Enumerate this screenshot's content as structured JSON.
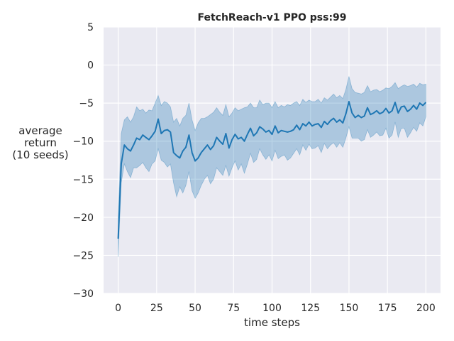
{
  "chart_data": {
    "type": "line",
    "title": "FetchReach-v1 PPO pss:99",
    "xlabel": "time steps",
    "ylabel_lines": [
      "average",
      "return",
      "(10 seeds)"
    ],
    "xlim": [
      -9.5,
      209.5
    ],
    "ylim": [
      -30,
      5
    ],
    "xticks": [
      0,
      25,
      50,
      75,
      100,
      125,
      150,
      175,
      200
    ],
    "yticks": [
      5,
      0,
      -5,
      -10,
      -15,
      -20,
      -25,
      -30
    ],
    "grid": true,
    "background_color": "#eaeaf2",
    "line_color": "#1f77b4",
    "band_color": "#1f77b4",
    "series": [
      {
        "x": [
          0,
          2,
          4,
          6,
          8,
          10,
          12,
          14,
          16,
          18,
          20,
          22,
          24,
          26,
          28,
          30,
          32,
          34,
          36,
          38,
          40,
          42,
          44,
          46,
          48,
          50,
          52,
          54,
          56,
          58,
          60,
          62,
          64,
          66,
          68,
          70,
          72,
          74,
          76,
          78,
          80,
          82,
          84,
          86,
          88,
          90,
          92,
          94,
          96,
          98,
          100,
          102,
          104,
          106,
          108,
          110,
          112,
          114,
          116,
          118,
          120,
          122,
          124,
          126,
          128,
          130,
          132,
          134,
          136,
          138,
          140,
          142,
          144,
          146,
          148,
          150,
          152,
          154,
          156,
          158,
          160,
          162,
          164,
          166,
          168,
          170,
          172,
          174,
          176,
          178,
          180,
          182,
          184,
          186,
          188,
          190,
          192,
          194,
          196,
          198,
          200
        ],
        "mean": [
          -22.8,
          -13.0,
          -10.5,
          -11.0,
          -11.3,
          -10.5,
          -9.6,
          -9.8,
          -9.2,
          -9.5,
          -9.8,
          -9.3,
          -8.7,
          -7.1,
          -9.0,
          -8.6,
          -8.5,
          -8.8,
          -11.5,
          -11.9,
          -12.2,
          -11.3,
          -10.8,
          -9.2,
          -11.5,
          -12.6,
          -12.2,
          -11.5,
          -11.0,
          -10.5,
          -11.1,
          -10.6,
          -9.5,
          -10.0,
          -10.4,
          -9.0,
          -10.9,
          -9.8,
          -9.1,
          -9.7,
          -9.5,
          -10.0,
          -9.1,
          -8.3,
          -9.3,
          -8.9,
          -8.1,
          -8.4,
          -8.8,
          -8.6,
          -9.1,
          -8.0,
          -8.9,
          -8.6,
          -8.7,
          -8.8,
          -8.7,
          -8.5,
          -7.9,
          -8.5,
          -7.7,
          -8.0,
          -7.5,
          -8.0,
          -7.8,
          -7.7,
          -8.2,
          -7.4,
          -7.8,
          -7.3,
          -7.0,
          -7.5,
          -7.2,
          -7.6,
          -6.4,
          -4.8,
          -6.3,
          -6.9,
          -6.6,
          -6.9,
          -6.7,
          -5.6,
          -6.5,
          -6.3,
          -6.0,
          -6.4,
          -6.2,
          -5.7,
          -6.3,
          -6.0,
          -4.9,
          -6.3,
          -5.5,
          -5.4,
          -6.1,
          -5.8,
          -5.3,
          -5.8,
          -5.0,
          -5.3,
          -4.9
        ],
        "lower": [
          -25.2,
          -15.5,
          -13.0,
          -14.0,
          -14.8,
          -13.5,
          -13.5,
          -13.2,
          -12.8,
          -13.5,
          -14.0,
          -13.0,
          -12.6,
          -11.0,
          -12.5,
          -12.8,
          -13.4,
          -13.0,
          -15.5,
          -17.3,
          -16.0,
          -16.8,
          -15.8,
          -14.0,
          -16.5,
          -17.5,
          -16.8,
          -15.8,
          -15.0,
          -14.5,
          -15.6,
          -15.0,
          -13.5,
          -14.0,
          -14.5,
          -13.2,
          -14.6,
          -13.5,
          -12.6,
          -13.8,
          -13.0,
          -14.2,
          -13.0,
          -11.6,
          -12.8,
          -12.4,
          -11.0,
          -11.8,
          -12.4,
          -11.8,
          -12.6,
          -11.2,
          -12.3,
          -12.0,
          -11.8,
          -12.5,
          -12.2,
          -11.6,
          -11.0,
          -11.8,
          -10.5,
          -11.2,
          -10.4,
          -11.0,
          -10.9,
          -10.6,
          -11.5,
          -10.3,
          -11.0,
          -10.5,
          -10.2,
          -10.8,
          -10.2,
          -10.8,
          -9.6,
          -8.1,
          -9.6,
          -9.6,
          -9.6,
          -10.0,
          -9.8,
          -8.5,
          -9.5,
          -9.2,
          -8.8,
          -9.3,
          -9.2,
          -8.3,
          -9.6,
          -9.2,
          -7.5,
          -9.5,
          -8.3,
          -8.3,
          -9.5,
          -8.9,
          -8.2,
          -8.7,
          -7.6,
          -8.0,
          -6.8
        ],
        "upper": [
          -20.0,
          -9.0,
          -7.2,
          -6.8,
          -7.5,
          -6.8,
          -5.5,
          -6.0,
          -5.8,
          -6.3,
          -5.9,
          -6.0,
          -5.0,
          -4.0,
          -5.3,
          -4.8,
          -5.0,
          -5.5,
          -7.5,
          -7.0,
          -8.0,
          -7.0,
          -6.6,
          -5.0,
          -7.2,
          -8.6,
          -7.6,
          -7.0,
          -7.0,
          -6.8,
          -6.5,
          -6.2,
          -5.6,
          -6.2,
          -6.6,
          -5.2,
          -6.8,
          -6.3,
          -5.6,
          -6.0,
          -5.8,
          -5.6,
          -5.5,
          -5.0,
          -5.6,
          -5.6,
          -4.6,
          -5.2,
          -5.0,
          -5.0,
          -5.6,
          -4.8,
          -5.6,
          -5.3,
          -5.5,
          -5.2,
          -5.3,
          -5.0,
          -4.8,
          -5.3,
          -4.5,
          -4.9,
          -4.6,
          -4.8,
          -4.8,
          -4.5,
          -5.0,
          -4.3,
          -4.6,
          -4.2,
          -3.8,
          -4.3,
          -4.0,
          -4.4,
          -3.2,
          -1.5,
          -3.1,
          -3.6,
          -3.7,
          -3.8,
          -3.6,
          -2.7,
          -3.5,
          -3.3,
          -3.2,
          -3.5,
          -3.3,
          -3.0,
          -3.1,
          -2.8,
          -2.3,
          -3.1,
          -2.8,
          -2.6,
          -2.8,
          -2.7,
          -2.5,
          -2.9,
          -2.4,
          -2.6,
          -2.5
        ]
      }
    ]
  }
}
